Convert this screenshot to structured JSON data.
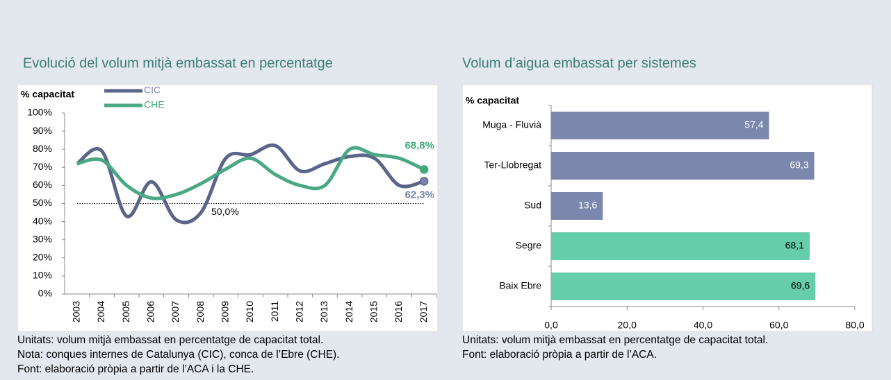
{
  "chart_data": [
    {
      "type": "line",
      "title": "Evolució del volum mitjà embassat en percentatge",
      "ylabel": "% capacitat",
      "categories": [
        "2003",
        "2004",
        "2005",
        "2006",
        "2007",
        "2008",
        "2009",
        "2010",
        "2011",
        "2012",
        "2013",
        "2014",
        "2015",
        "2016",
        "2017"
      ],
      "series": [
        {
          "name": "CIC",
          "color": "#5b6589",
          "label_color": "#7b87ad",
          "values": [
            72,
            79,
            43,
            62,
            41,
            45,
            75,
            77,
            82,
            68,
            72,
            76,
            75,
            60,
            62.3
          ],
          "value_labels": [
            null,
            null,
            null,
            null,
            null,
            null,
            null,
            null,
            null,
            null,
            null,
            null,
            null,
            null,
            "62,3%"
          ]
        },
        {
          "name": "CHE",
          "color": "#4aa882",
          "label_color": "#3fa97a",
          "values": [
            72,
            74,
            60,
            53,
            55,
            61,
            69,
            75,
            66,
            60,
            60,
            80,
            77,
            75,
            68.8
          ],
          "value_labels": [
            null,
            null,
            null,
            null,
            null,
            null,
            null,
            null,
            null,
            null,
            null,
            null,
            null,
            null,
            "68,8%"
          ]
        }
      ],
      "reference_line": {
        "value": 50,
        "label": "50,0%"
      },
      "ylim": [
        0,
        100
      ],
      "yticks": [
        {
          "value": 0,
          "label": "0%"
        },
        {
          "value": 10,
          "label": "10%"
        },
        {
          "value": 20,
          "label": "20%"
        },
        {
          "value": 30,
          "label": "30%"
        },
        {
          "value": 40,
          "label": "40%"
        },
        {
          "value": 50,
          "label": "50%"
        },
        {
          "value": 60,
          "label": "60%"
        },
        {
          "value": 70,
          "label": "70%"
        },
        {
          "value": 80,
          "label": "80%"
        },
        {
          "value": 90,
          "label": "90%"
        },
        {
          "value": 100,
          "label": "100%"
        }
      ],
      "notes": [
        "Unitats: volum mitjà embassat en percentatge de capacitat total.",
        "Nota: conques internes de Catalunya (CIC), conca de l’Ebre (CHE).",
        "Font: elaboració pròpia a partir de l’ACA i la CHE."
      ]
    },
    {
      "type": "hbar",
      "title": "Volum d’aigua embassat per sistemes",
      "ylabel": "% capacitat",
      "categories": [
        "Muga - Fluvià",
        "Ter-Llobregat",
        "Sud",
        "Segre",
        "Baix Ebre"
      ],
      "values": [
        57.4,
        69.3,
        13.6,
        68.1,
        69.6
      ],
      "value_labels": [
        "57,4",
        "69,3",
        "13,6",
        "68,1",
        "69,6"
      ],
      "colors": [
        "#7b87ad",
        "#7b87ad",
        "#7b87ad",
        "#66cdaa",
        "#66cdaa"
      ],
      "xlim": [
        0,
        80
      ],
      "xticks": [
        {
          "value": 0,
          "label": "0,0"
        },
        {
          "value": 20,
          "label": "20,0"
        },
        {
          "value": 40,
          "label": "40,0"
        },
        {
          "value": 60,
          "label": "60,0"
        },
        {
          "value": 80,
          "label": "80,0"
        }
      ],
      "notes": [
        "Unitats: volum mitjà embassat en percentatge de capacitat total.",
        "Font: elaboració pròpia a partir de l’ACA."
      ]
    }
  ]
}
